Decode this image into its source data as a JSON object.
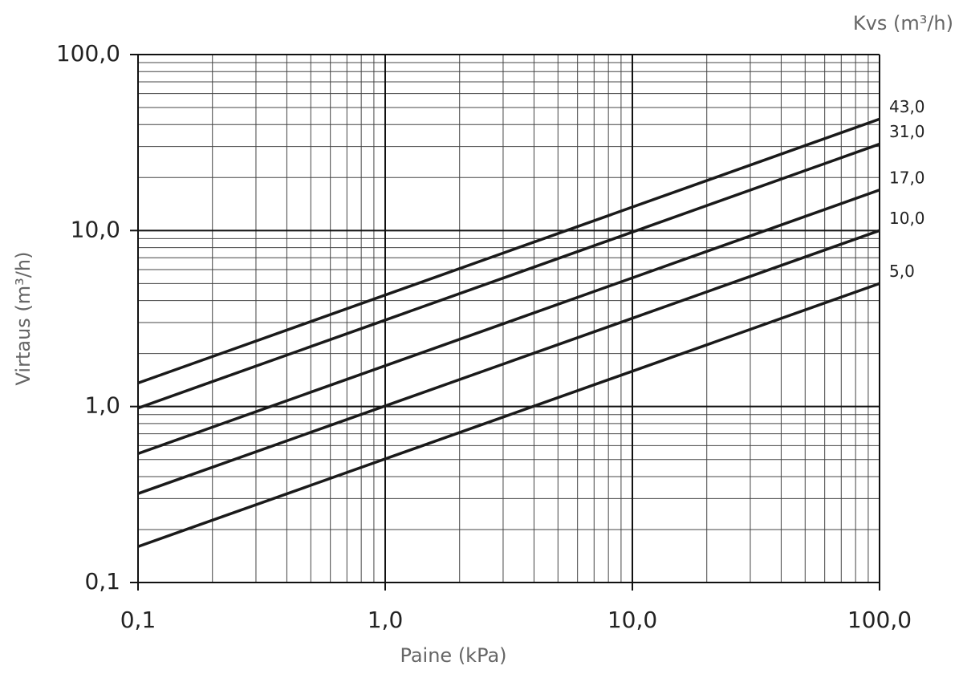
{
  "chart_data": {
    "type": "line",
    "xlabel": "Paine (kPa)",
    "ylabel": "Virtaus (m³/h)",
    "legend_title": "Kvs (m³/h)",
    "x": [
      0.1,
      100
    ],
    "series": [
      {
        "name": "43,0",
        "color": "#1a1a1a",
        "values": [
          1.36,
          43
        ]
      },
      {
        "name": "31,0",
        "color": "#1a1a1a",
        "values": [
          0.98,
          31
        ]
      },
      {
        "name": "17,0",
        "color": "#1a1a1a",
        "values": [
          0.54,
          17
        ]
      },
      {
        "name": "10,0",
        "color": "#1a1a1a",
        "values": [
          0.32,
          10
        ]
      },
      {
        "name": "5,0",
        "color": "#1a1a1a",
        "values": [
          0.16,
          5
        ]
      }
    ],
    "xscale": "log",
    "yscale": "log",
    "xlim": [
      0.1,
      100
    ],
    "ylim": [
      0.1,
      100
    ],
    "xticks": [
      {
        "value": 0.1,
        "label": "0,1"
      },
      {
        "value": 1,
        "label": "1,0"
      },
      {
        "value": 10,
        "label": "10,0"
      },
      {
        "value": 100,
        "label": "100,0"
      }
    ],
    "yticks": [
      {
        "value": 0.1,
        "label": "0,1"
      },
      {
        "value": 1,
        "label": "1,0"
      },
      {
        "value": 10,
        "label": "10,0"
      },
      {
        "value": 100,
        "label": "100,0"
      }
    ],
    "grid": true,
    "minor_grid": true
  }
}
